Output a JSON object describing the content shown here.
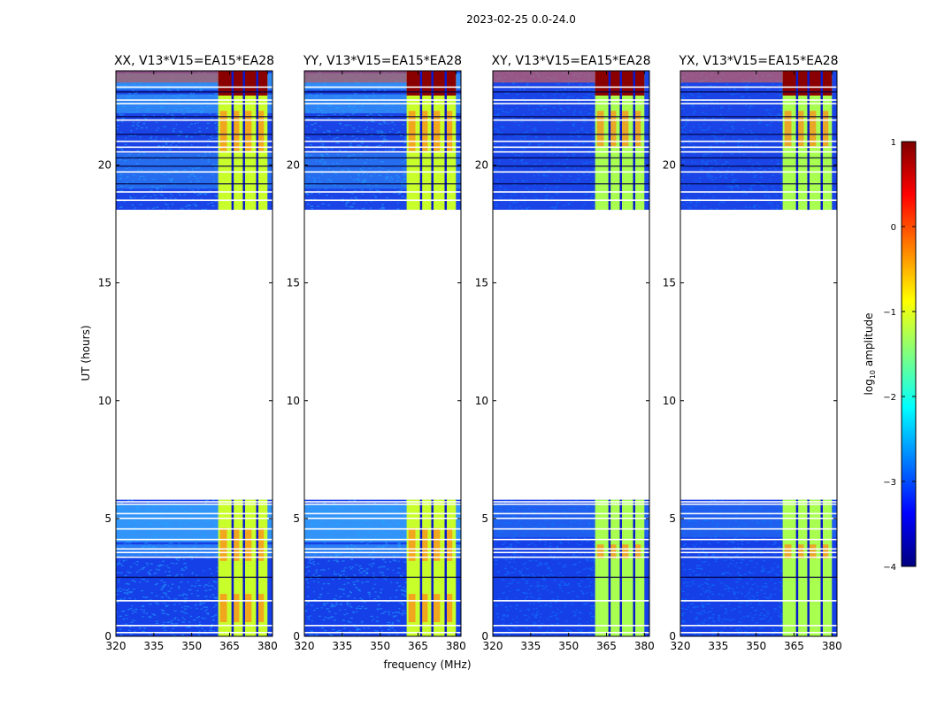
{
  "figure": {
    "suptitle": "2023-02-25 0.0-24.0",
    "xlabel": "frequency (MHz)",
    "ylabel": "UT (hours)"
  },
  "chart_data": {
    "type": "heatmap",
    "title": "2023-02-25 0.0-24.0",
    "xlabel": "frequency (MHz)",
    "ylabel": "UT (hours)",
    "xlim": [
      320,
      382
    ],
    "ylim": [
      0,
      24
    ],
    "x_ticks": [
      320,
      335,
      350,
      365,
      380
    ],
    "y_ticks": [
      0,
      5,
      10,
      15,
      20
    ],
    "panels": [
      {
        "title": "XX, V13*V15=EA15*EA28",
        "polarization": "XX"
      },
      {
        "title": "YY, V13*V15=EA15*EA28",
        "polarization": "YY"
      },
      {
        "title": "XY, V13*V15=EA15*EA28",
        "polarization": "XY"
      },
      {
        "title": "YX, V13*V15=EA15*EA28",
        "polarization": "YX"
      }
    ],
    "data_gap_hours": [
      5.8,
      18.1
    ],
    "rfi_band_mhz": [
      360.5,
      380.0
    ],
    "colorbar": {
      "label": "log10 amplitude",
      "label_base": "log",
      "label_sub": "10",
      "label_rest": " amplitude",
      "range": [
        -4,
        1
      ],
      "ticks": [
        1,
        0,
        -1,
        -2,
        -3,
        -4
      ],
      "tick_labels": [
        "1",
        "0",
        "−1",
        "−2",
        "−3",
        "−4"
      ],
      "colormap": "jet"
    }
  },
  "colors": {
    "jet": [
      "#00007f",
      "#0000ff",
      "#007fff",
      "#00ffff",
      "#7fff7f",
      "#ffff00",
      "#ff7f00",
      "#ff0000",
      "#7f0000"
    ],
    "background": "#ffffff",
    "axes": "#000000"
  }
}
